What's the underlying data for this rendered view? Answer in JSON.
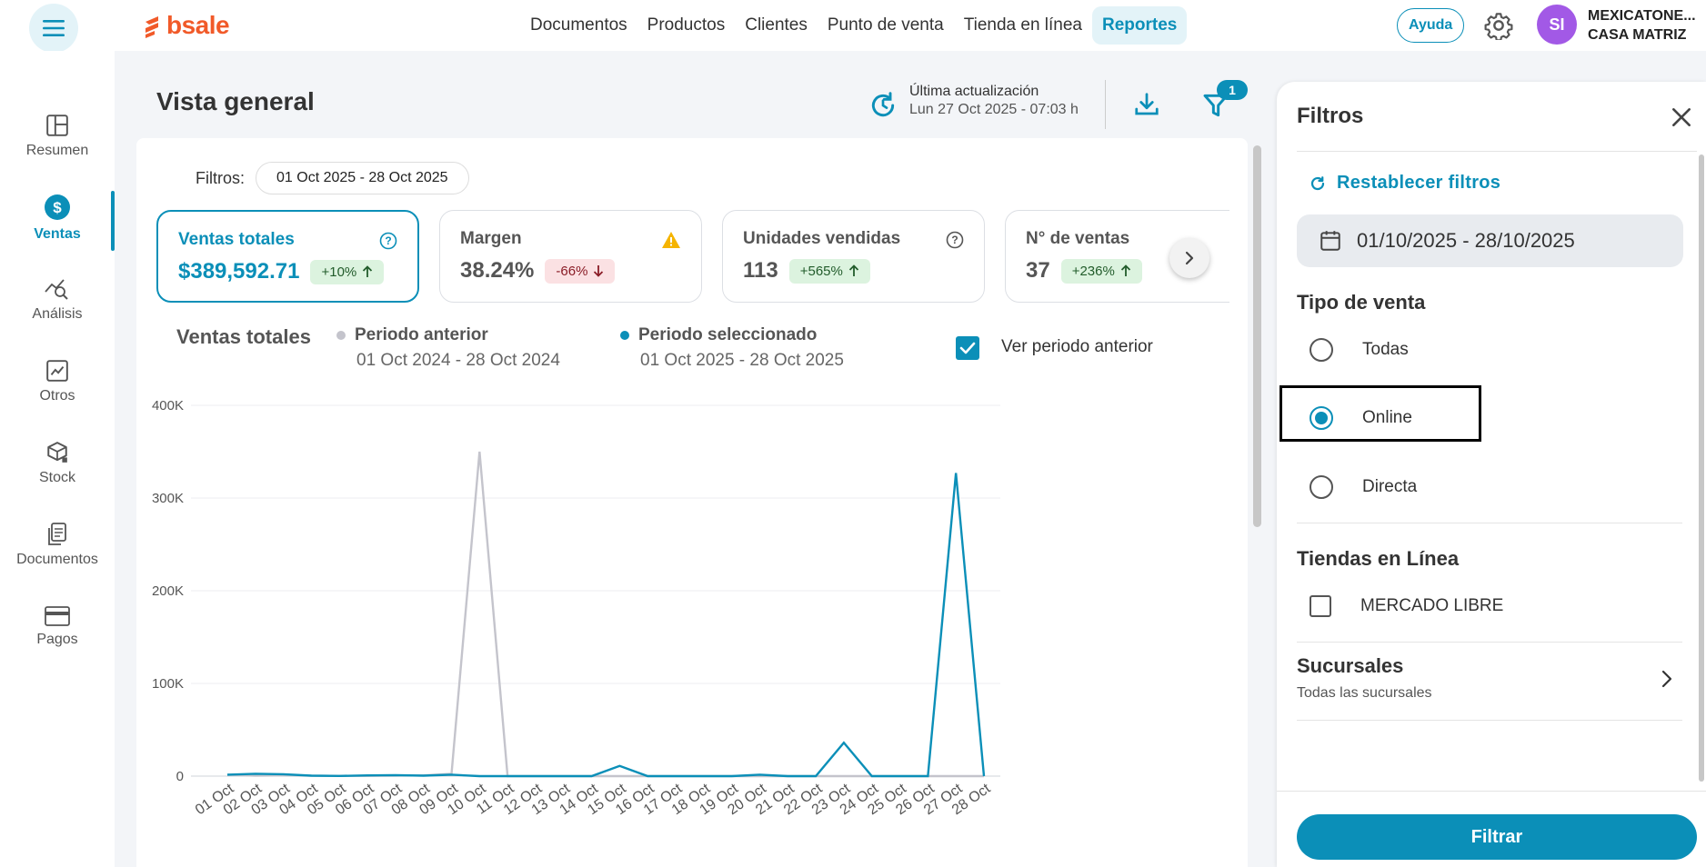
{
  "brand": {
    "name": "bsale",
    "color": "#f15a29"
  },
  "topnav": {
    "items": [
      "Documentos",
      "Productos",
      "Clientes",
      "Punto de venta",
      "Tienda en línea",
      "Reportes"
    ],
    "active": "Reportes",
    "help_label": "Ayuda",
    "avatar_initials": "SI",
    "company_name": "MEXICATONE...",
    "company_branch": "CASA MATRIZ"
  },
  "sidebar": {
    "items": [
      {
        "label": "Resumen",
        "icon": "layout-icon"
      },
      {
        "label": "Ventas",
        "icon": "dollar-icon"
      },
      {
        "label": "Análisis",
        "icon": "analysis-icon"
      },
      {
        "label": "Otros",
        "icon": "trend-icon"
      },
      {
        "label": "Stock",
        "icon": "stock-icon"
      },
      {
        "label": "Documentos",
        "icon": "document-icon"
      },
      {
        "label": "Pagos",
        "icon": "card-icon"
      }
    ],
    "active": "Ventas"
  },
  "header": {
    "title": "Vista general",
    "update_label": "Última actualización",
    "update_time": "Lun 27 Oct 2025 - 07:03 h",
    "filter_count": "1"
  },
  "filters_bar": {
    "label": "Filtros:",
    "date_chip": "01 Oct 2025 - 28 Oct 2025"
  },
  "kpis": [
    {
      "title": "Ventas totales",
      "value": "$389,592.71",
      "change": "+10%",
      "trend": "up",
      "icon": "help-circle-icon"
    },
    {
      "title": "Margen",
      "value": "38.24%",
      "change": "-66%",
      "trend": "down",
      "icon": "warning-icon"
    },
    {
      "title": "Unidades vendidas",
      "value": "113",
      "change": "+565%",
      "trend": "up",
      "icon": "help-circle-icon"
    },
    {
      "title": "N° de ventas",
      "value": "37",
      "change": "+236%",
      "trend": "up",
      "icon": ""
    }
  ],
  "chart_section": {
    "title": "Ventas totales",
    "legend_prev_name": "Periodo anterior",
    "legend_prev_range": "01 Oct 2024 - 28 Oct 2024",
    "legend_sel_name": "Periodo seleccionado",
    "legend_sel_range": "01 Oct 2025 - 28 Oct 2025",
    "show_prev_label": "Ver periodo anterior",
    "show_prev_checked": true
  },
  "chart_data": {
    "type": "line",
    "title": "Ventas totales",
    "xlabel": "",
    "ylabel": "",
    "ylim": [
      0,
      400000
    ],
    "yticks": [
      0,
      100000,
      200000,
      300000,
      400000
    ],
    "ytick_labels": [
      "0",
      "100K",
      "200K",
      "300K",
      "400K"
    ],
    "categories": [
      "01 Oct",
      "02 Oct",
      "03 Oct",
      "04 Oct",
      "05 Oct",
      "06 Oct",
      "07 Oct",
      "08 Oct",
      "09 Oct",
      "10 Oct",
      "11 Oct",
      "12 Oct",
      "13 Oct",
      "14 Oct",
      "15 Oct",
      "16 Oct",
      "17 Oct",
      "18 Oct",
      "19 Oct",
      "20 Oct",
      "21 Oct",
      "22 Oct",
      "23 Oct",
      "24 Oct",
      "25 Oct",
      "26 Oct",
      "27 Oct",
      "28 Oct"
    ],
    "series": [
      {
        "name": "Periodo anterior",
        "color": "#c4c4cc",
        "values": [
          1500,
          500,
          800,
          400,
          300,
          200,
          500,
          800,
          2500,
          350000,
          0,
          0,
          0,
          0,
          0,
          0,
          0,
          0,
          0,
          0,
          0,
          0,
          0,
          0,
          0,
          0,
          0,
          0
        ]
      },
      {
        "name": "Periodo seleccionado",
        "color": "#0b8fb8",
        "values": [
          1500,
          2500,
          2000,
          500,
          200,
          800,
          1000,
          500,
          1500,
          0,
          0,
          0,
          0,
          0,
          11000,
          0,
          0,
          0,
          0,
          1500,
          0,
          0,
          36000,
          0,
          0,
          0,
          327000,
          0
        ]
      }
    ]
  },
  "filter_panel": {
    "title": "Filtros",
    "reset_label": "Restablecer filtros",
    "date_range": "01/10/2025 - 28/10/2025",
    "tipo_venta_title": "Tipo de venta",
    "tipo_venta_options": [
      "Todas",
      "Online",
      "Directa"
    ],
    "tipo_venta_selected": "Online",
    "tiendas_title": "Tiendas en Línea",
    "tiendas_options": [
      "MERCADO LIBRE"
    ],
    "sucursales_title": "Sucursales",
    "sucursales_value": "Todas las sucursales",
    "apply_label": "Filtrar"
  },
  "colors": {
    "accent": "#0b8fb8",
    "success_bg": "#dcf3df",
    "danger_bg": "#fbe1e3",
    "warning": "#f5b400"
  }
}
